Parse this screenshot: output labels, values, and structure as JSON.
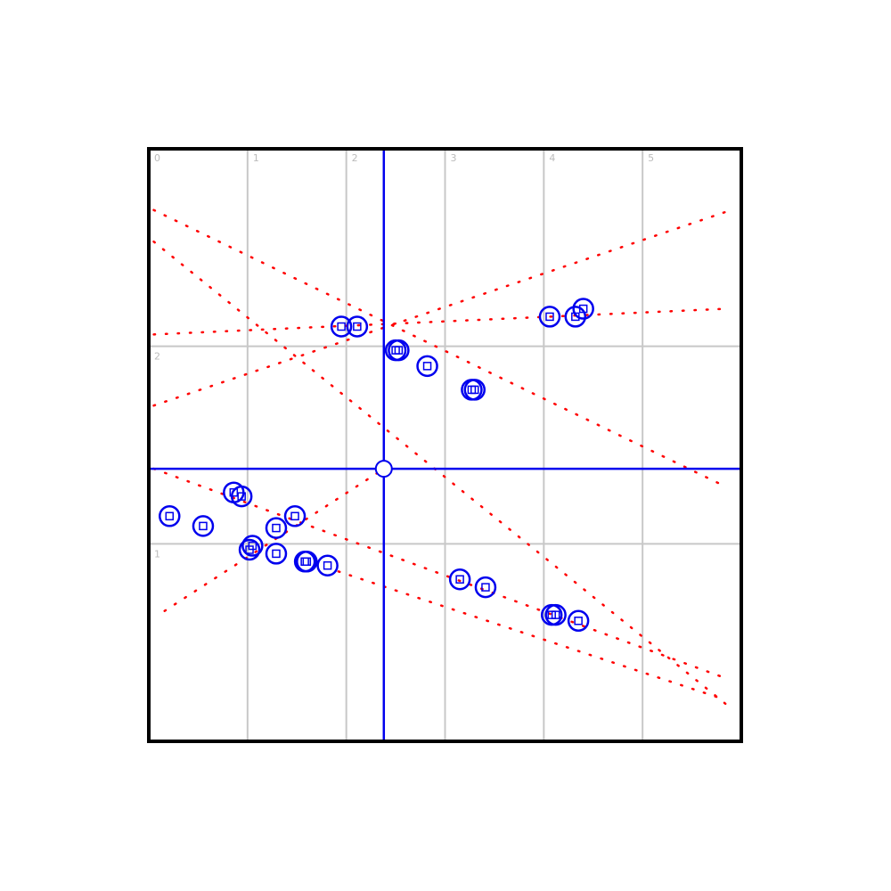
{
  "chart_data": {
    "type": "scatter",
    "xlim": [
      0,
      6
    ],
    "ylim": [
      0,
      3
    ],
    "xticks": [
      0,
      1,
      2,
      3,
      4,
      5
    ],
    "yticks": [
      1,
      2
    ],
    "grid": true,
    "crosshair": {
      "x": 2.38,
      "y": 1.38,
      "color": "#0000ee"
    },
    "series": [
      {
        "color": "#0000ee",
        "x": [
          1.95,
          2.11,
          2.5,
          2.53,
          2.82,
          3.27,
          3.3,
          4.06,
          4.32,
          4.4,
          0.86,
          0.94,
          0.21,
          0.55,
          1.29,
          1.48,
          1.02,
          1.05,
          1.29,
          1.58,
          1.6,
          1.81,
          3.15,
          3.41,
          4.08,
          4.12,
          4.35
        ],
        "values": [
          2.1,
          2.1,
          1.98,
          1.98,
          1.9,
          1.78,
          1.78,
          2.15,
          2.15,
          2.19,
          1.26,
          1.24,
          1.14,
          1.09,
          1.08,
          1.14,
          0.97,
          0.99,
          0.95,
          0.91,
          0.91,
          0.89,
          0.82,
          0.78,
          0.64,
          0.64,
          0.61
        ]
      }
    ],
    "trend_lines": {
      "color": "#ff0000",
      "lines": [
        {
          "x": [
            0.05,
            5.84
          ],
          "values": [
            2.69,
            1.29
          ]
        },
        {
          "x": [
            0.05,
            5.84
          ],
          "values": [
            2.53,
            0.19
          ]
        },
        {
          "x": [
            0.05,
            5.84
          ],
          "values": [
            2.06,
            2.19
          ]
        },
        {
          "x": [
            0.05,
            5.84
          ],
          "values": [
            1.7,
            2.68
          ]
        },
        {
          "x": [
            0.16,
            2.38
          ],
          "values": [
            0.66,
            1.38
          ]
        },
        {
          "x": [
            0.05,
            5.84
          ],
          "values": [
            1.38,
            0.32
          ]
        },
        {
          "x": [
            1.92,
            5.84
          ],
          "values": [
            0.86,
            0.21
          ]
        }
      ]
    }
  }
}
